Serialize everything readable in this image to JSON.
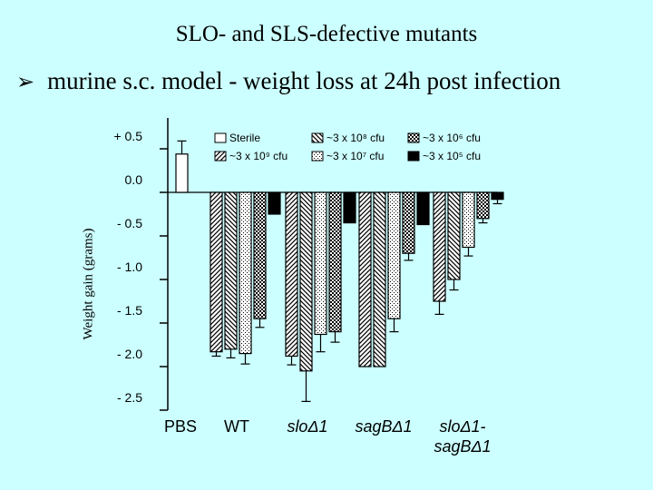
{
  "slide": {
    "title": "SLO- and SLS-defective mutants",
    "bullet_symbol": "➢",
    "bullet_text": "murine s.c. model - weight loss at 24h post infection"
  },
  "chart_data": {
    "type": "bar",
    "ylabel": "Weight gain (grams)",
    "ylim": [
      -2.5,
      0.75
    ],
    "ytick_values": [
      0.5,
      0.0,
      -0.5,
      -1.0,
      -1.5,
      -2.0,
      -2.5
    ],
    "ytick_labels": [
      "+ 0.5",
      "0.0",
      "- 0.5",
      "- 1.0",
      "- 1.5",
      "- 2.0",
      "- 2.5"
    ],
    "grid": false,
    "legend_position": "top-right",
    "categories": [
      {
        "label": "PBS",
        "italic": false
      },
      {
        "label": "WT",
        "italic": false
      },
      {
        "label": "sloΔ1",
        "italic": true
      },
      {
        "label": "sagBΔ1",
        "italic": true
      },
      {
        "label": "sloΔ1-sagBΔ1",
        "italic": true
      }
    ],
    "series": [
      {
        "name": "Sterile",
        "pattern": "white",
        "values": [
          0.44,
          null,
          null,
          null,
          null
        ],
        "errors": [
          0.15,
          null,
          null,
          null,
          null
        ]
      },
      {
        "name": "~3 x 10⁹ cfu",
        "pattern": "hatch-left",
        "values": [
          null,
          -1.83,
          -1.88,
          -2.0,
          -1.25
        ],
        "errors": [
          null,
          0.05,
          0.1,
          0.0,
          0.15
        ]
      },
      {
        "name": "~3 x 10⁸ cfu",
        "pattern": "hatch-right",
        "values": [
          null,
          -1.8,
          -2.05,
          -2.0,
          -1.0
        ],
        "errors": [
          null,
          0.1,
          0.35,
          0.0,
          0.12
        ]
      },
      {
        "name": "~3 x 10⁷ cfu",
        "pattern": "dots",
        "values": [
          null,
          -1.85,
          -1.63,
          -1.45,
          -0.63
        ],
        "errors": [
          null,
          0.12,
          0.2,
          0.15,
          0.1
        ]
      },
      {
        "name": "~3 x 10⁶ cfu",
        "pattern": "checker",
        "values": [
          null,
          -1.45,
          -1.6,
          -0.7,
          -0.3
        ],
        "errors": [
          null,
          0.1,
          0.12,
          0.08,
          0.05
        ]
      },
      {
        "name": "~3 x 10⁵ cfu",
        "pattern": "black",
        "values": [
          null,
          -0.25,
          -0.35,
          -0.37,
          -0.08
        ],
        "errors": [
          null,
          0.0,
          0.0,
          0.0,
          0.05
        ]
      }
    ],
    "legend_layout": [
      [
        0,
        2,
        4
      ],
      [
        1,
        3,
        5
      ]
    ]
  },
  "colors": {
    "background": "#ccffff",
    "bar_fill": "#ffffff",
    "ink": "#000000"
  }
}
